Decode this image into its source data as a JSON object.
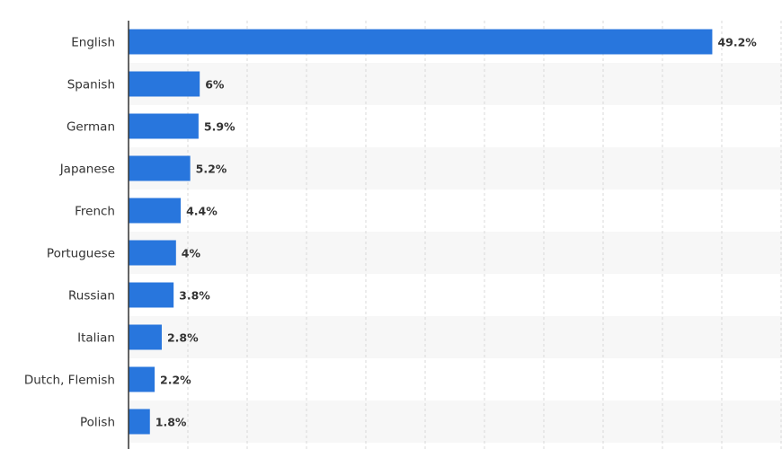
{
  "chart_data": {
    "type": "bar",
    "orientation": "horizontal",
    "categories": [
      "English",
      "Spanish",
      "German",
      "Japanese",
      "French",
      "Portuguese",
      "Russian",
      "Italian",
      "Dutch, Flemish",
      "Polish"
    ],
    "values": [
      49.2,
      6,
      5.9,
      5.2,
      4.4,
      4,
      3.8,
      2.8,
      2.2,
      1.8
    ],
    "value_labels": [
      "49.2%",
      "6%",
      "5.9%",
      "5.2%",
      "4.4%",
      "4%",
      "3.8%",
      "2.8%",
      "2.2%",
      "1.8%"
    ],
    "unit": "%",
    "xlim": [
      0,
      55
    ],
    "grid": "vertical dashed lines every 5",
    "row_banding": true,
    "legend": "none",
    "bar_color": "#2876dd",
    "band_color": "#f7f7f7",
    "grid_color": "#d9d9d9",
    "axis_color": "#333333",
    "text_color": "#333333"
  }
}
